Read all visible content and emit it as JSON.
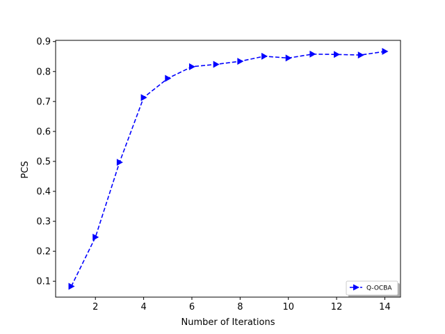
{
  "chart_data": {
    "type": "line",
    "xlabel": "Number of Iterations",
    "ylabel": "PCS",
    "xlim": [
      0.35,
      14.65
    ],
    "ylim": [
      0.047,
      0.904
    ],
    "xticks": [
      2,
      4,
      6,
      8,
      10,
      12,
      14
    ],
    "yticks": [
      0.1,
      0.2,
      0.3,
      0.4,
      0.5,
      0.6,
      0.7,
      0.8,
      0.9
    ],
    "grid": false,
    "legend_position": "lower-right",
    "series": [
      {
        "name": "Q-OCBA",
        "color": "#0000ff",
        "line_style": "dashed",
        "marker": "triangle-right",
        "x": [
          1,
          2,
          3,
          4,
          5,
          6,
          7,
          8,
          9,
          10,
          11,
          12,
          13,
          14
        ],
        "y": [
          0.083,
          0.247,
          0.497,
          0.713,
          0.777,
          0.816,
          0.824,
          0.834,
          0.851,
          0.845,
          0.858,
          0.857,
          0.855,
          0.867
        ]
      }
    ]
  }
}
